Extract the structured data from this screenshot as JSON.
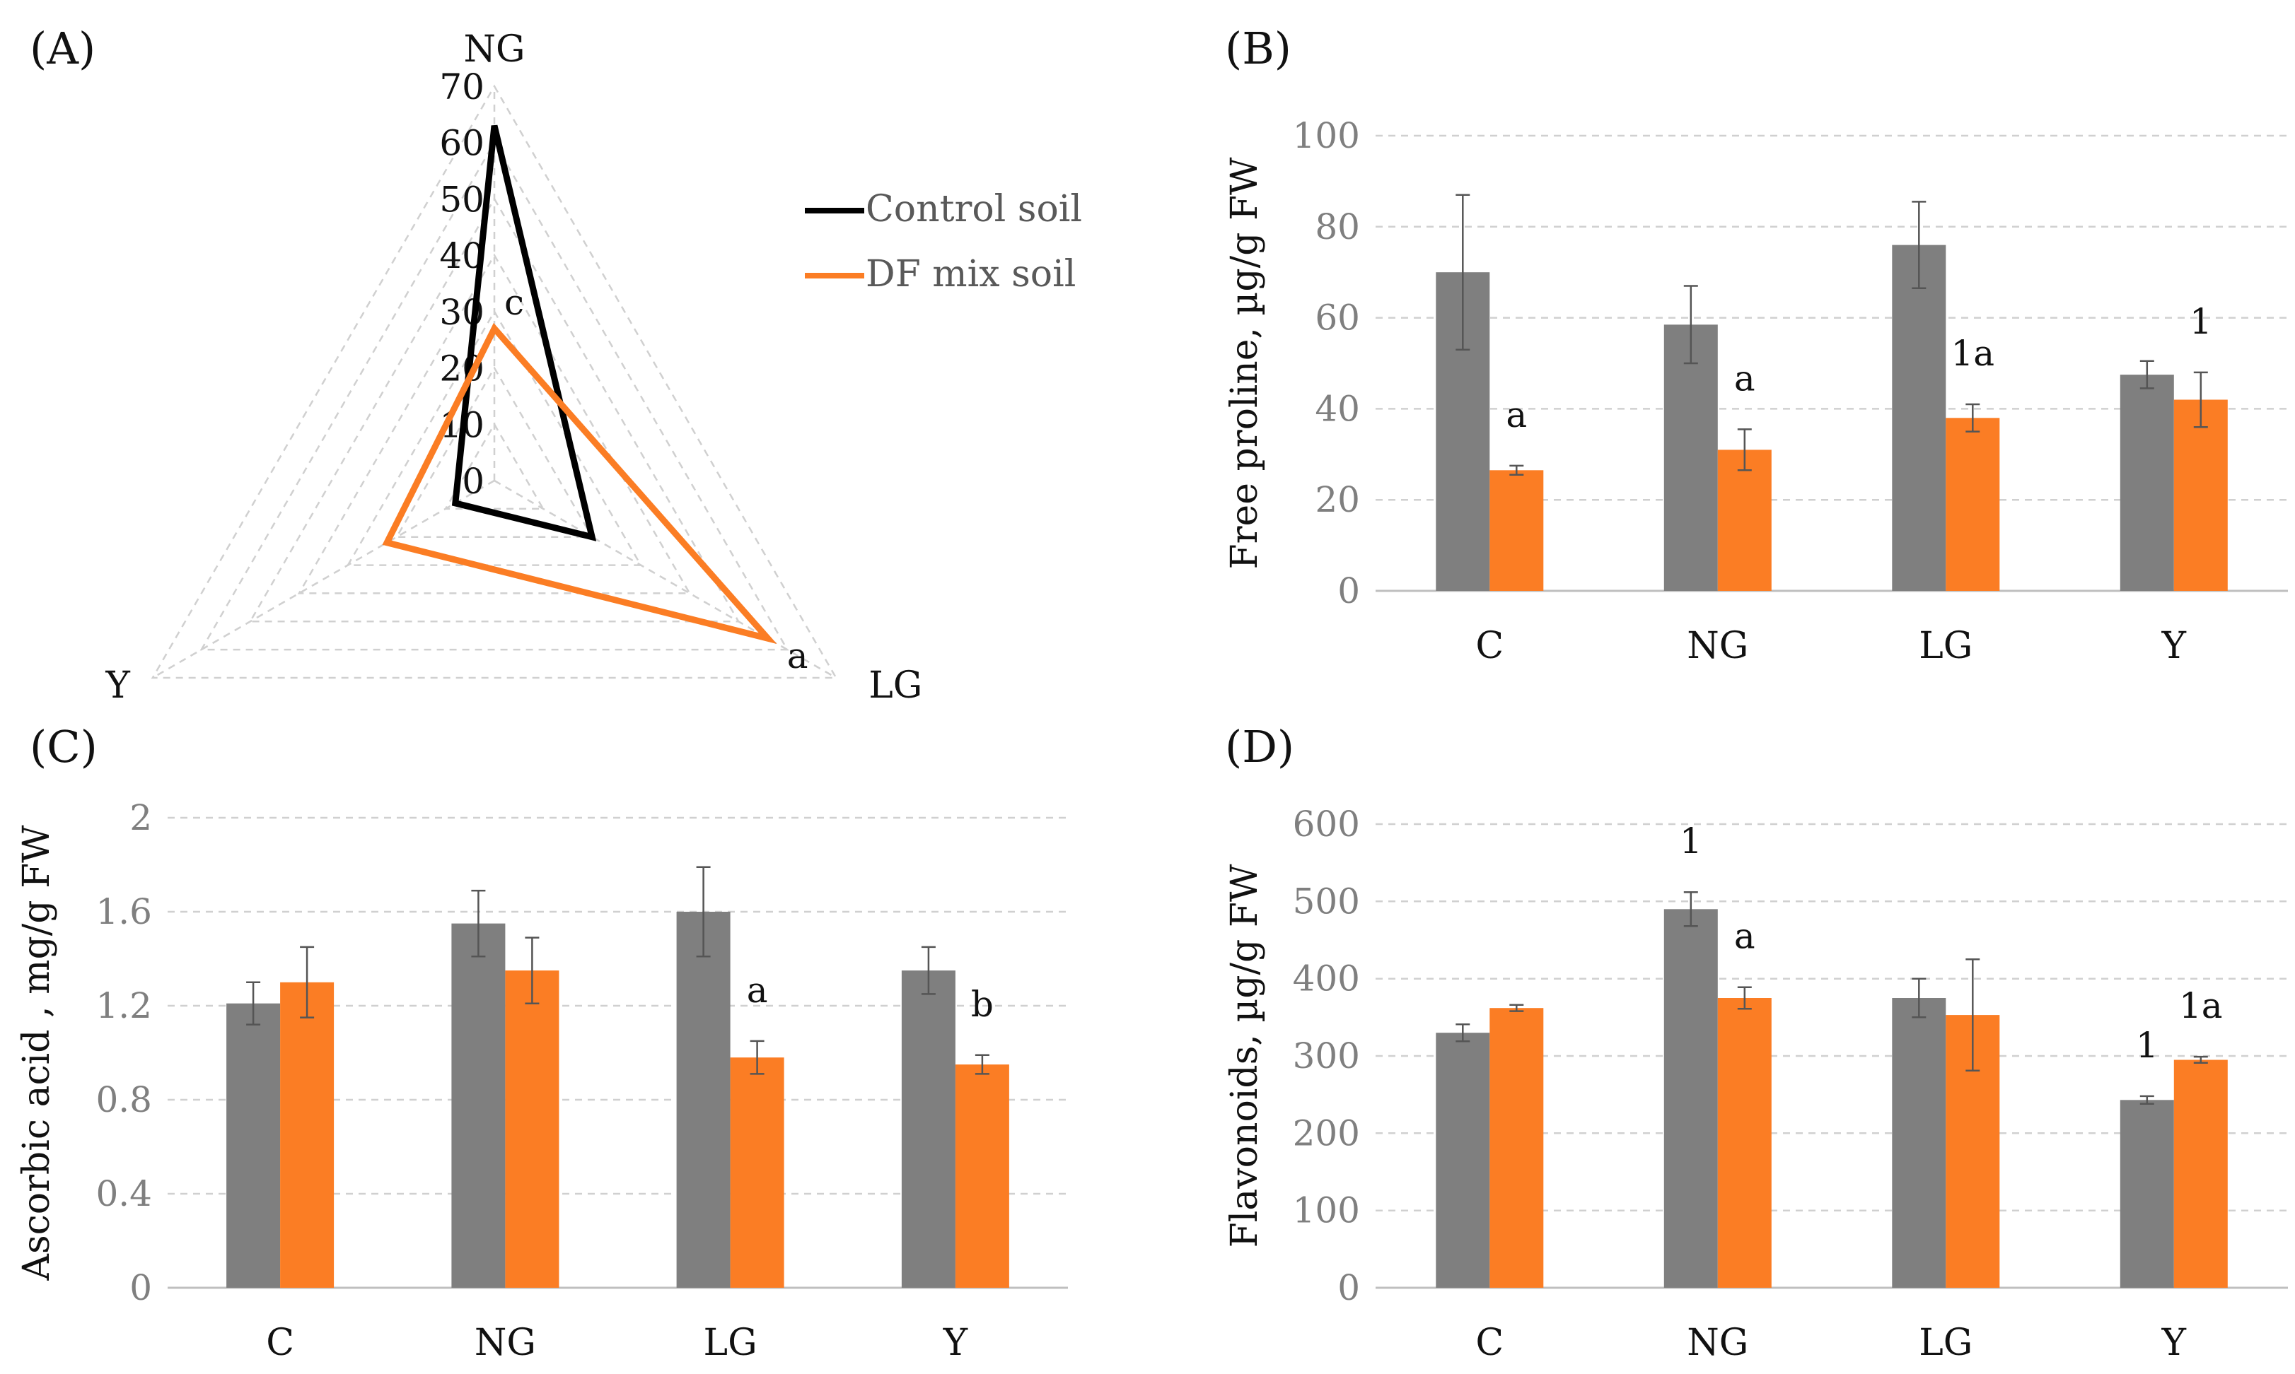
{
  "colors": {
    "control": "#7f7f7f",
    "df": "#fb7d24",
    "control_line": "#000000",
    "grid": "#d0d0d0",
    "errbar": "#555555"
  },
  "legend": {
    "control": "Control soil",
    "df": "DF mix soil"
  },
  "chart_data": [
    {
      "panel": "(A)",
      "type": "radar",
      "axes": [
        "NG",
        "LG",
        "Y"
      ],
      "ticks": [
        0,
        10,
        20,
        30,
        40,
        50,
        60,
        70
      ],
      "rmax": 70,
      "series": [
        {
          "name": "Control soil",
          "values": [
            63,
            20,
            8
          ]
        },
        {
          "name": "DF mix soil",
          "values": [
            27,
            56,
            22
          ]
        }
      ],
      "annotations": [
        {
          "axis": "NG",
          "series": "DF mix soil",
          "text": "c"
        },
        {
          "axis": "LG",
          "series": "DF mix soil",
          "text": "a"
        }
      ]
    },
    {
      "panel": "(B)",
      "type": "bar",
      "ylabel": "Free proline, µg/g FW",
      "ylim": [
        0,
        100
      ],
      "ticks": [
        0,
        20,
        40,
        60,
        80,
        100
      ],
      "tick_labels": [
        "0",
        "20",
        "40",
        "60",
        "80",
        "100"
      ],
      "categories": [
        "C",
        "NG",
        "LG",
        "Y"
      ],
      "series": [
        {
          "name": "Control soil",
          "values": [
            70,
            58.5,
            76,
            47.5
          ],
          "errors": [
            17,
            8.5,
            9.5,
            3
          ]
        },
        {
          "name": "DF mix soil",
          "values": [
            26.5,
            31,
            38,
            42
          ],
          "errors": [
            1,
            4.5,
            3,
            6
          ]
        }
      ],
      "annotations": [
        {
          "category": "C",
          "series": "DF mix soil",
          "text": "a"
        },
        {
          "category": "NG",
          "series": "DF mix soil",
          "text": "a"
        },
        {
          "category": "LG",
          "series": "DF mix soil",
          "text": "1a"
        },
        {
          "category": "Y",
          "series": "DF mix soil",
          "text": "1"
        }
      ]
    },
    {
      "panel": "(C)",
      "type": "bar",
      "ylabel": "Ascorbic acid , mg/g FW",
      "ylim": [
        0,
        2
      ],
      "ticks": [
        0,
        0.4,
        0.8,
        1.2,
        1.6,
        2
      ],
      "tick_labels": [
        "0",
        "0.4",
        "0.8",
        "1.2",
        "1.6",
        "2"
      ],
      "categories": [
        "C",
        "NG",
        "LG",
        "Y"
      ],
      "series": [
        {
          "name": "Control soil",
          "values": [
            1.21,
            1.55,
            1.6,
            1.35
          ],
          "errors": [
            0.09,
            0.14,
            0.19,
            0.1
          ]
        },
        {
          "name": "DF mix soil",
          "values": [
            1.3,
            1.35,
            0.98,
            0.95
          ],
          "errors": [
            0.15,
            0.14,
            0.07,
            0.04
          ]
        }
      ],
      "annotations": [
        {
          "category": "LG",
          "series": "DF mix soil",
          "text": "a"
        },
        {
          "category": "Y",
          "series": "DF mix soil",
          "text": "b"
        }
      ]
    },
    {
      "panel": "(D)",
      "type": "bar",
      "ylabel": "Flavonoids, µg/g FW",
      "ylim": [
        0,
        600
      ],
      "ticks": [
        0,
        100,
        200,
        300,
        400,
        500,
        600
      ],
      "tick_labels": [
        "0",
        "100",
        "200",
        "300",
        "400",
        "500",
        "600"
      ],
      "categories": [
        "C",
        "NG",
        "LG",
        "Y"
      ],
      "series": [
        {
          "name": "Control soil",
          "values": [
            330,
            490,
            375,
            243
          ],
          "errors": [
            11,
            22,
            25,
            5
          ]
        },
        {
          "name": "DF mix soil",
          "values": [
            362,
            375,
            353,
            295
          ],
          "errors": [
            4,
            14,
            72,
            4
          ]
        }
      ],
      "annotations": [
        {
          "category": "NG",
          "series": "Control soil",
          "text": "1"
        },
        {
          "category": "NG",
          "series": "DF mix soil",
          "text": "a"
        },
        {
          "category": "Y",
          "series": "Control soil",
          "text": "1"
        },
        {
          "category": "Y",
          "series": "DF mix soil",
          "text": "1a"
        }
      ]
    }
  ]
}
